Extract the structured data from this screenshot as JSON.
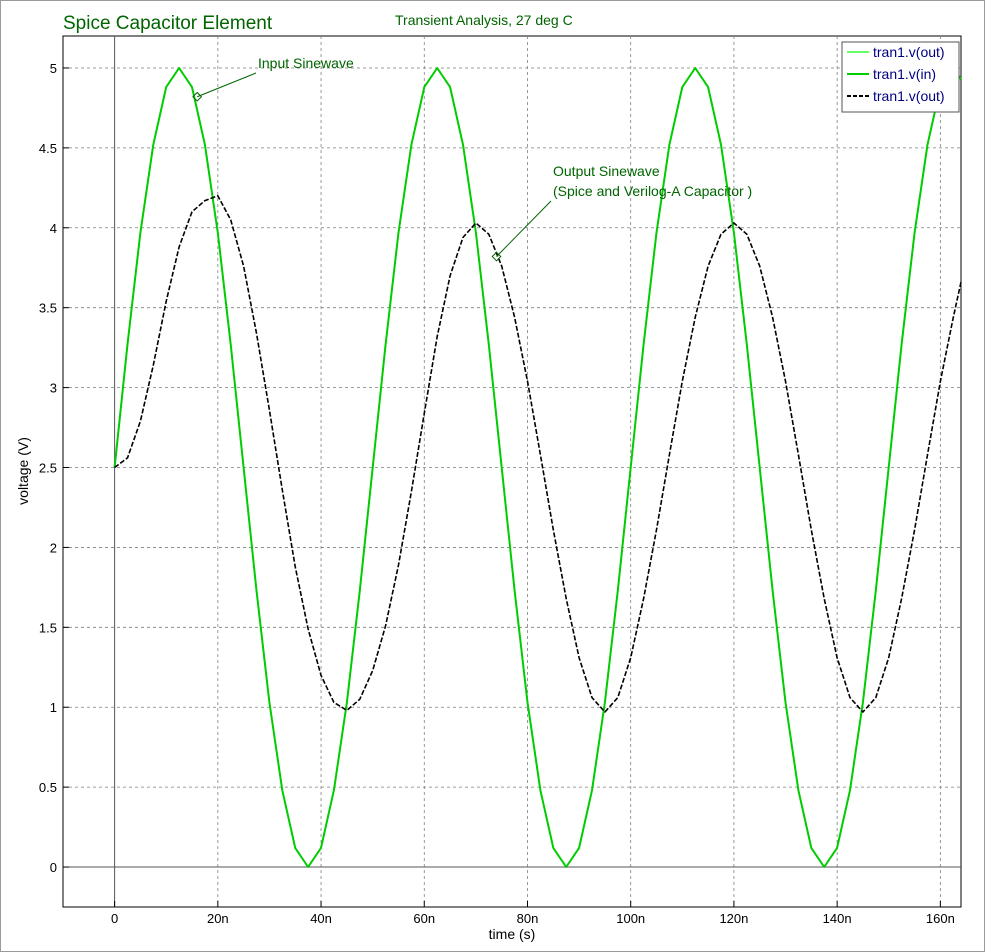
{
  "chart_data": {
    "type": "line",
    "title": "Spice Capacitor Element",
    "subtitle": "Transient Analysis, 27 deg C",
    "xlabel": "time (s)",
    "ylabel": "voltage (V)",
    "xlim": [
      -10,
      164
    ],
    "ylim": [
      -0.25,
      5.2
    ],
    "x_unit_suffix": "n",
    "xticks": [
      0,
      20,
      40,
      60,
      80,
      100,
      120,
      140,
      160
    ],
    "xtick_labels": [
      "0",
      "20n",
      "40n",
      "60n",
      "80n",
      "100n",
      "120n",
      "140n",
      "160n"
    ],
    "yticks": [
      0,
      0.5,
      1,
      1.5,
      2,
      2.5,
      3,
      3.5,
      4,
      4.5,
      5
    ],
    "ytick_labels": [
      "0",
      "0.5",
      "1",
      "1.5",
      "2",
      "2.5",
      "3",
      "3.5",
      "4",
      "4.5",
      "5"
    ],
    "grid": true,
    "legend_position": "top-right",
    "legend": [
      {
        "label": "tran1.v(out)",
        "color": "#66ff66",
        "dashed": false
      },
      {
        "label": "tran1.v(in)",
        "color": "#00cc00",
        "dashed": false
      },
      {
        "label": "tran1.v(out)",
        "color": "#000000",
        "dashed": true
      }
    ],
    "series": [
      {
        "name": "tran1.v(in)",
        "color": "#00cc00",
        "x": [
          0,
          2.5,
          5,
          7.5,
          10,
          12.5,
          15,
          17.5,
          20,
          22.5,
          25,
          27.5,
          30,
          32.5,
          35,
          37.5,
          40,
          42.5,
          45,
          47.5,
          50,
          52.5,
          55,
          57.5,
          60,
          62.5,
          65,
          67.5,
          70,
          72.5,
          75,
          77.5,
          80,
          82.5,
          85,
          87.5,
          90,
          92.5,
          95,
          97.5,
          100,
          102.5,
          105,
          107.5,
          110,
          112.5,
          115,
          117.5,
          120,
          122.5,
          125,
          127.5,
          130,
          132.5,
          135,
          137.5,
          140,
          142.5,
          145,
          147.5,
          150,
          152.5,
          155,
          157.5,
          160,
          162.5,
          164
        ],
        "y": [
          2.5,
          3.27,
          3.97,
          4.52,
          4.88,
          5.0,
          4.88,
          4.52,
          3.97,
          3.27,
          2.5,
          1.73,
          1.03,
          0.48,
          0.12,
          0.0,
          0.12,
          0.48,
          1.03,
          1.73,
          2.5,
          3.27,
          3.97,
          4.52,
          4.88,
          5.0,
          4.88,
          4.52,
          3.97,
          3.27,
          2.5,
          1.73,
          1.03,
          0.48,
          0.12,
          0.0,
          0.12,
          0.48,
          1.03,
          1.73,
          2.5,
          3.27,
          3.97,
          4.52,
          4.88,
          5.0,
          4.88,
          4.52,
          3.97,
          3.27,
          2.5,
          1.73,
          1.03,
          0.48,
          0.12,
          0.0,
          0.12,
          0.48,
          1.03,
          1.73,
          2.5,
          3.27,
          3.97,
          4.52,
          4.88,
          5.0,
          4.93
        ]
      },
      {
        "name": "tran1.v(out)",
        "color": "#000000",
        "dashed": true,
        "x": [
          0,
          2.5,
          5,
          7.5,
          10,
          12.5,
          15,
          17.5,
          20,
          22.5,
          25,
          27.5,
          30,
          32.5,
          35,
          37.5,
          40,
          42.5,
          45,
          47.5,
          50,
          52.5,
          55,
          57.5,
          60,
          62.5,
          65,
          67.5,
          70,
          72.5,
          75,
          77.5,
          80,
          82.5,
          85,
          87.5,
          90,
          92.5,
          95,
          97.5,
          100,
          102.5,
          105,
          107.5,
          110,
          112.5,
          115,
          117.5,
          120,
          122.5,
          125,
          127.5,
          130,
          132.5,
          135,
          137.5,
          140,
          142.5,
          145,
          147.5,
          150,
          152.5,
          155,
          157.5,
          160,
          162.5,
          164
        ],
        "y": [
          2.5,
          2.56,
          2.79,
          3.14,
          3.54,
          3.88,
          4.1,
          4.17,
          4.2,
          4.05,
          3.76,
          3.34,
          2.86,
          2.36,
          1.88,
          1.49,
          1.2,
          1.03,
          0.98,
          1.05,
          1.23,
          1.51,
          1.89,
          2.35,
          2.84,
          3.32,
          3.7,
          3.94,
          4.03,
          3.96,
          3.76,
          3.44,
          3.04,
          2.58,
          2.11,
          1.68,
          1.31,
          1.06,
          0.97,
          1.06,
          1.31,
          1.68,
          2.11,
          2.58,
          3.04,
          3.44,
          3.76,
          3.96,
          4.03,
          3.96,
          3.76,
          3.44,
          3.04,
          2.58,
          2.11,
          1.68,
          1.31,
          1.06,
          0.97,
          1.06,
          1.31,
          1.68,
          2.11,
          2.58,
          3.04,
          3.44,
          3.66
        ]
      }
    ],
    "annotations": [
      {
        "lines": [
          "Input Sinewave"
        ],
        "point": [
          16,
          4.82
        ]
      },
      {
        "lines": [
          "Output Sinewave",
          "(Spice and Verilog-A Capacitor )"
        ],
        "point": [
          74,
          3.82
        ]
      }
    ]
  }
}
